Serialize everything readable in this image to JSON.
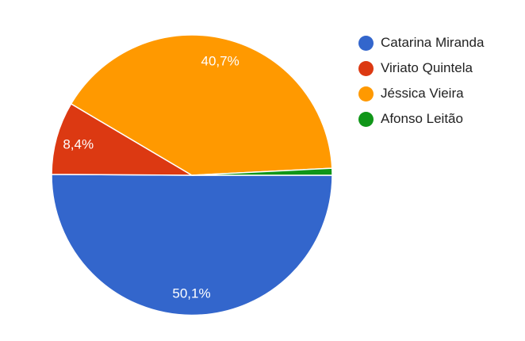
{
  "chart_data": {
    "type": "pie",
    "categories": [
      "Catarina Miranda",
      "Viriato Quintela",
      "Jéssica Vieira",
      "Afonso Leitão"
    ],
    "values": [
      50.1,
      8.4,
      40.7,
      0.8
    ],
    "labels": [
      "50,1%",
      "8,4%",
      "40,7%",
      ""
    ],
    "colors": [
      "#3366cc",
      "#dc3912",
      "#ff9900",
      "#109618"
    ],
    "legend_position": "right"
  }
}
